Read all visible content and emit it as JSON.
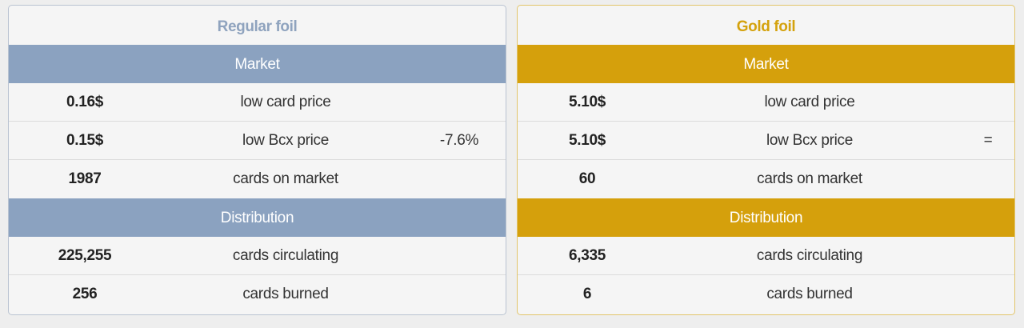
{
  "panels": [
    {
      "title": "Regular foil",
      "market_header": "Market",
      "market_rows": [
        {
          "value": "0.16$",
          "label": "low card price",
          "change": ""
        },
        {
          "value": "0.15$",
          "label": "low Bcx price",
          "change": "-7.6%"
        },
        {
          "value": "1987",
          "label": "cards on market",
          "change": ""
        }
      ],
      "distribution_header": "Distribution",
      "distribution_rows": [
        {
          "value": "225,255",
          "label": "cards circulating"
        },
        {
          "value": "256",
          "label": "cards burned"
        }
      ]
    },
    {
      "title": "Gold foil",
      "market_header": "Market",
      "market_rows": [
        {
          "value": "5.10$",
          "label": "low card price",
          "change": ""
        },
        {
          "value": "5.10$",
          "label": "low Bcx price",
          "change": "="
        },
        {
          "value": "60",
          "label": "cards on market",
          "change": ""
        }
      ],
      "distribution_header": "Distribution",
      "distribution_rows": [
        {
          "value": "6,335",
          "label": "cards circulating"
        },
        {
          "value": "6",
          "label": "cards burned"
        }
      ]
    }
  ],
  "colors": {
    "regular_accent": "#8ba2c0",
    "regular_title": "#8fa3be",
    "gold_accent": "#d5a00c",
    "gold_title": "#d4a20d"
  }
}
